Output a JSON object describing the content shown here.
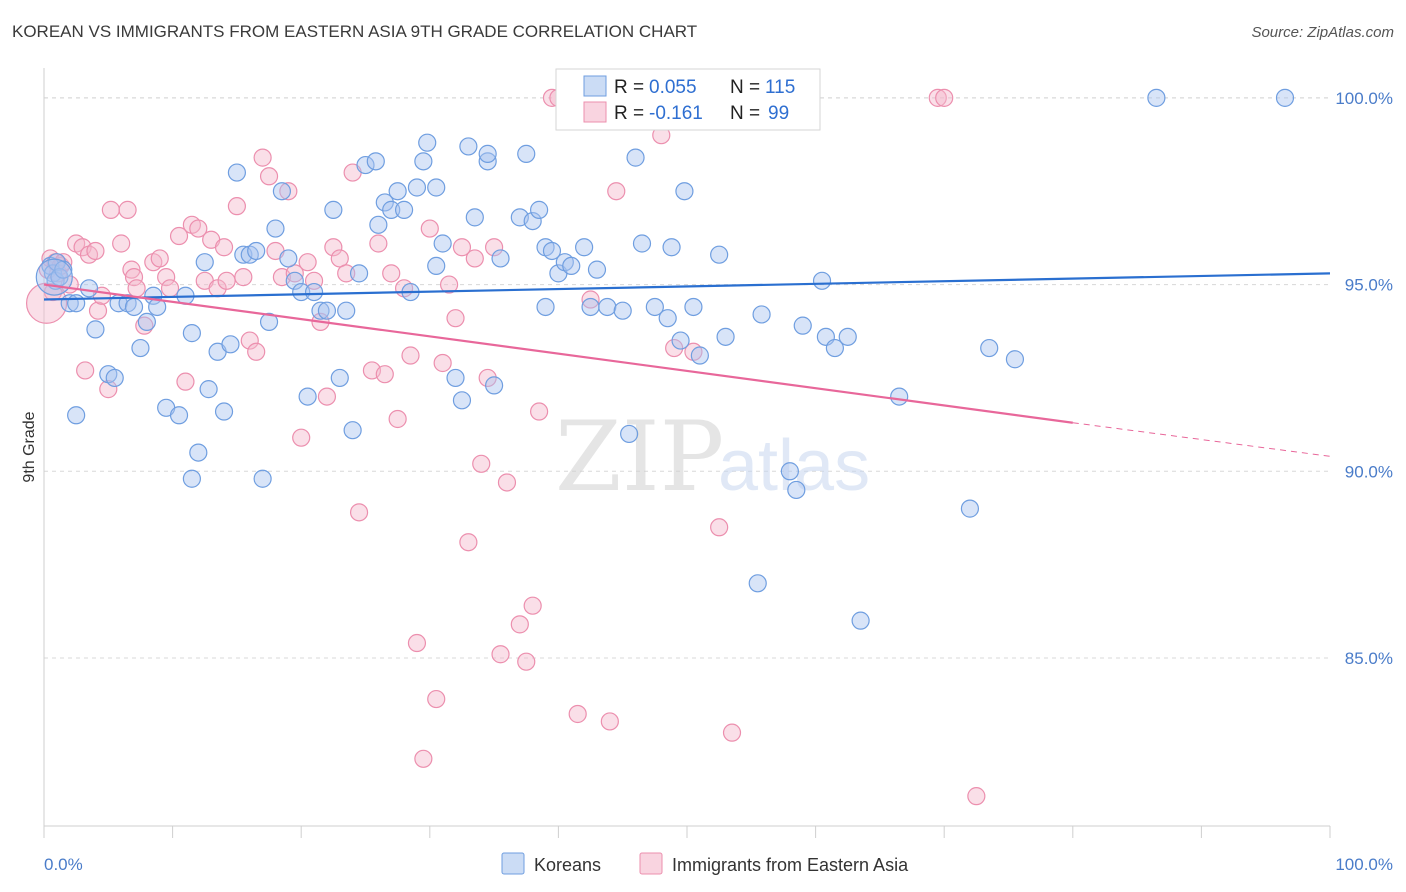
{
  "title": "KOREAN VS IMMIGRANTS FROM EASTERN ASIA 9TH GRADE CORRELATION CHART",
  "source": "Source: ZipAtlas.com",
  "watermark": {
    "zip": "ZIP",
    "atlas": "atlas"
  },
  "stats_legend": [
    {
      "r_label": "R =",
      "r_value": "0.055",
      "n_label": "N =",
      "n_value": "115"
    },
    {
      "r_label": "R =",
      "r_value": "-0.161",
      "n_label": "N =",
      "n_value": "99"
    }
  ],
  "colors": {
    "korean_fill": "#a9c4ef",
    "korean_stroke": "#6f9ee0",
    "korean_line": "#2a6fd0",
    "imm_fill": "#f5b8cc",
    "imm_stroke": "#ec8fae",
    "imm_line": "#e8679a",
    "grid": "#d8d8d8",
    "axis_text": "#4a7cc9"
  },
  "chart_data": {
    "type": "scatter",
    "title": "KOREAN VS IMMIGRANTS FROM EASTERN ASIA 9TH GRADE CORRELATION CHART",
    "xlabel": "",
    "ylabel": "9th Grade",
    "xlim": [
      0,
      100
    ],
    "ylim": [
      80.5,
      100.8
    ],
    "x_tick_labels": [
      "0.0%",
      "100.0%"
    ],
    "y_ticks": [
      85,
      90,
      95,
      100
    ],
    "y_tick_labels": [
      "85.0%",
      "90.0%",
      "95.0%",
      "100.0%"
    ],
    "grid": true,
    "legend_position": "bottom",
    "series": [
      {
        "name": "Koreans",
        "r": 0.055,
        "n": 115,
        "trend": {
          "x": [
            0,
            100
          ],
          "y": [
            94.6,
            95.3
          ]
        },
        "points": [
          [
            0.5,
            95.5
          ],
          [
            0.7,
            95.3
          ],
          [
            0.9,
            95.1
          ],
          [
            1.0,
            95.6
          ],
          [
            1.2,
            95.2
          ],
          [
            1.5,
            95.4
          ],
          [
            2.0,
            94.5
          ],
          [
            2.5,
            94.5
          ],
          [
            3.5,
            94.9
          ],
          [
            2.5,
            91.5
          ],
          [
            4.0,
            93.8
          ],
          [
            5.0,
            92.6
          ],
          [
            5.5,
            92.5
          ],
          [
            5.8,
            94.5
          ],
          [
            6.5,
            94.5
          ],
          [
            7.0,
            94.4
          ],
          [
            7.5,
            93.3
          ],
          [
            8.0,
            94.0
          ],
          [
            8.5,
            94.7
          ],
          [
            8.8,
            94.4
          ],
          [
            9.5,
            91.7
          ],
          [
            10.5,
            91.5
          ],
          [
            11.0,
            94.7
          ],
          [
            11.5,
            93.7
          ],
          [
            11.5,
            89.8
          ],
          [
            12.0,
            90.5
          ],
          [
            12.5,
            95.6
          ],
          [
            12.8,
            92.2
          ],
          [
            13.5,
            93.2
          ],
          [
            14.0,
            91.6
          ],
          [
            14.5,
            93.4
          ],
          [
            15.0,
            98.0
          ],
          [
            15.5,
            95.8
          ],
          [
            16.0,
            95.8
          ],
          [
            16.5,
            95.9
          ],
          [
            17.0,
            89.8
          ],
          [
            17.5,
            94.0
          ],
          [
            18.0,
            96.5
          ],
          [
            18.5,
            97.5
          ],
          [
            19.0,
            95.7
          ],
          [
            19.5,
            95.1
          ],
          [
            20.0,
            94.8
          ],
          [
            20.5,
            92.0
          ],
          [
            21.0,
            94.8
          ],
          [
            21.5,
            94.3
          ],
          [
            22.0,
            94.3
          ],
          [
            22.5,
            97.0
          ],
          [
            23.0,
            92.5
          ],
          [
            23.5,
            94.3
          ],
          [
            24.0,
            91.1
          ],
          [
            24.5,
            95.3
          ],
          [
            25.0,
            98.2
          ],
          [
            25.8,
            98.3
          ],
          [
            26.0,
            96.6
          ],
          [
            26.5,
            97.2
          ],
          [
            27.0,
            97.0
          ],
          [
            27.5,
            97.5
          ],
          [
            28.0,
            97.0
          ],
          [
            28.5,
            94.8
          ],
          [
            29.0,
            97.6
          ],
          [
            29.5,
            98.3
          ],
          [
            29.8,
            98.8
          ],
          [
            30.5,
            97.6
          ],
          [
            30.5,
            95.5
          ],
          [
            31.0,
            96.1
          ],
          [
            32.0,
            92.5
          ],
          [
            32.5,
            91.9
          ],
          [
            33.0,
            98.7
          ],
          [
            33.5,
            96.8
          ],
          [
            34.5,
            98.3
          ],
          [
            34.5,
            98.5
          ],
          [
            35.0,
            92.3
          ],
          [
            35.5,
            95.7
          ],
          [
            37.0,
            96.8
          ],
          [
            37.5,
            98.5
          ],
          [
            38.0,
            96.7
          ],
          [
            38.5,
            97.0
          ],
          [
            39.0,
            94.4
          ],
          [
            39.0,
            96.0
          ],
          [
            39.5,
            95.9
          ],
          [
            40.0,
            95.3
          ],
          [
            40.5,
            95.6
          ],
          [
            41.0,
            95.5
          ],
          [
            42.0,
            96.0
          ],
          [
            42.5,
            94.4
          ],
          [
            43.0,
            95.4
          ],
          [
            43.8,
            94.4
          ],
          [
            45.0,
            94.3
          ],
          [
            45.5,
            91.0
          ],
          [
            46.0,
            98.4
          ],
          [
            46.5,
            96.1
          ],
          [
            47.5,
            94.4
          ],
          [
            48.5,
            94.1
          ],
          [
            48.8,
            96.0
          ],
          [
            49.5,
            93.5
          ],
          [
            49.8,
            97.5
          ],
          [
            50.5,
            94.4
          ],
          [
            51.0,
            93.1
          ],
          [
            52.5,
            95.8
          ],
          [
            53.0,
            93.6
          ],
          [
            55.5,
            87.0
          ],
          [
            55.8,
            94.2
          ],
          [
            58.0,
            90.0
          ],
          [
            58.5,
            89.5
          ],
          [
            59.0,
            93.9
          ],
          [
            60.5,
            95.1
          ],
          [
            60.8,
            93.6
          ],
          [
            61.5,
            93.3
          ],
          [
            62.5,
            93.6
          ],
          [
            63.5,
            86.0
          ],
          [
            66.5,
            92.0
          ],
          [
            72.0,
            89.0
          ],
          [
            73.5,
            93.3
          ],
          [
            75.5,
            93.0
          ],
          [
            86.5,
            100.0
          ],
          [
            96.5,
            100.0
          ]
        ]
      },
      {
        "name": "Immigrants from Eastern Asia",
        "r": -0.161,
        "n": 99,
        "trend": {
          "x": [
            0,
            80
          ],
          "y": [
            95.0,
            91.3
          ]
        },
        "trend_dashed": {
          "x": [
            80,
            100
          ],
          "y": [
            91.3,
            90.4
          ]
        },
        "points": [
          [
            0.3,
            95.4
          ],
          [
            0.5,
            95.7
          ],
          [
            0.7,
            94.8
          ],
          [
            0.9,
            95.6
          ],
          [
            1.1,
            95.3
          ],
          [
            1.3,
            95.5
          ],
          [
            1.5,
            95.6
          ],
          [
            2.0,
            95.0
          ],
          [
            2.5,
            96.1
          ],
          [
            3.0,
            96.0
          ],
          [
            3.2,
            92.7
          ],
          [
            3.5,
            95.8
          ],
          [
            4.0,
            95.9
          ],
          [
            4.2,
            94.3
          ],
          [
            4.5,
            94.7
          ],
          [
            5.0,
            92.2
          ],
          [
            5.2,
            97.0
          ],
          [
            6.0,
            96.1
          ],
          [
            6.5,
            97.0
          ],
          [
            6.8,
            95.4
          ],
          [
            7.0,
            95.2
          ],
          [
            7.2,
            94.9
          ],
          [
            7.8,
            93.9
          ],
          [
            8.5,
            95.6
          ],
          [
            9.0,
            95.7
          ],
          [
            9.5,
            95.2
          ],
          [
            9.8,
            94.9
          ],
          [
            10.5,
            96.3
          ],
          [
            11.0,
            92.4
          ],
          [
            11.5,
            96.6
          ],
          [
            12.0,
            96.5
          ],
          [
            12.5,
            95.1
          ],
          [
            13.0,
            96.2
          ],
          [
            13.5,
            94.9
          ],
          [
            14.0,
            96.0
          ],
          [
            14.2,
            95.1
          ],
          [
            15.0,
            97.1
          ],
          [
            15.5,
            95.2
          ],
          [
            16.0,
            93.5
          ],
          [
            16.5,
            93.2
          ],
          [
            17.0,
            98.4
          ],
          [
            17.5,
            97.9
          ],
          [
            18.0,
            95.9
          ],
          [
            18.5,
            95.2
          ],
          [
            19.0,
            97.5
          ],
          [
            19.5,
            95.3
          ],
          [
            20.0,
            90.9
          ],
          [
            20.5,
            95.6
          ],
          [
            21.0,
            95.1
          ],
          [
            21.5,
            94.0
          ],
          [
            22.0,
            92.0
          ],
          [
            22.5,
            96.0
          ],
          [
            23.0,
            95.7
          ],
          [
            23.5,
            95.3
          ],
          [
            24.0,
            98.0
          ],
          [
            24.5,
            88.9
          ],
          [
            25.5,
            92.7
          ],
          [
            26.0,
            96.1
          ],
          [
            26.5,
            92.6
          ],
          [
            27.0,
            95.3
          ],
          [
            27.5,
            91.4
          ],
          [
            28.0,
            94.9
          ],
          [
            28.5,
            93.1
          ],
          [
            29.0,
            85.4
          ],
          [
            29.5,
            82.3
          ],
          [
            30.0,
            96.5
          ],
          [
            30.5,
            83.9
          ],
          [
            31.0,
            92.9
          ],
          [
            31.5,
            95.0
          ],
          [
            32.0,
            94.1
          ],
          [
            32.5,
            96.0
          ],
          [
            33.0,
            88.1
          ],
          [
            33.5,
            95.7
          ],
          [
            34.0,
            90.2
          ],
          [
            34.5,
            92.5
          ],
          [
            35.0,
            96.0
          ],
          [
            35.5,
            85.1
          ],
          [
            36.0,
            89.7
          ],
          [
            37.0,
            85.9
          ],
          [
            37.5,
            84.9
          ],
          [
            38.0,
            86.4
          ],
          [
            38.5,
            91.6
          ],
          [
            39.5,
            100.0
          ],
          [
            40.0,
            100.0
          ],
          [
            41.5,
            83.5
          ],
          [
            42.5,
            94.6
          ],
          [
            43.5,
            100.0
          ],
          [
            44.0,
            83.3
          ],
          [
            44.5,
            97.5
          ],
          [
            45.5,
            99.8
          ],
          [
            46.5,
            100.0
          ],
          [
            48.0,
            99.0
          ],
          [
            49.0,
            93.3
          ],
          [
            50.5,
            93.2
          ],
          [
            52.5,
            88.5
          ],
          [
            53.5,
            83.0
          ],
          [
            69.5,
            100.0
          ],
          [
            70.0,
            100.0
          ],
          [
            72.5,
            81.3
          ]
        ]
      }
    ]
  }
}
